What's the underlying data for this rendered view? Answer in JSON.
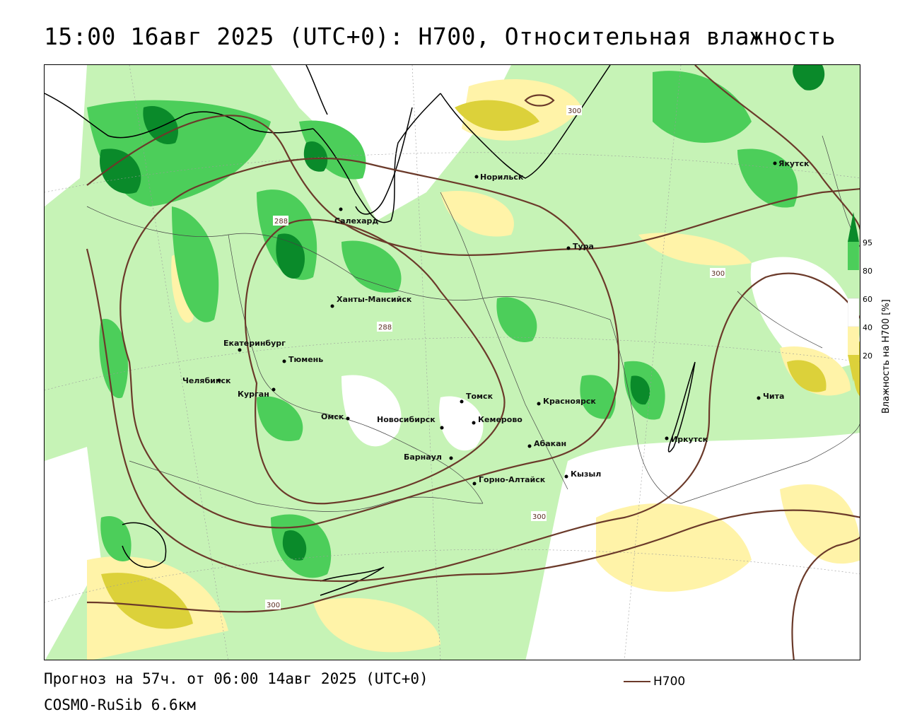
{
  "title": "15:00 16авг 2025 (UTC+0): H700, Относительная влажность",
  "footer": {
    "forecast": "Прогноз на 57ч. от 06:00 14авг 2025 (UTC+0)",
    "model": "COSMO-RuSib 6.6км"
  },
  "legend": {
    "title": "Влажность на H700 [%]",
    "ticks": [
      "95",
      "80",
      "60",
      "40",
      "20"
    ],
    "series_label": "H700",
    "colors": {
      "very_humid": "#0a8a2a",
      "humid": "#4cce5a",
      "moist": "#c6f3b6",
      "neutral": "#ffffff",
      "dry": "#fff3a8",
      "very_dry": "#dcd13a",
      "contour": "#6b3a2a"
    }
  },
  "contour_labels": [
    "300",
    "288",
    "288",
    "300",
    "300",
    "300"
  ],
  "cities": [
    {
      "name": "Норильск"
    },
    {
      "name": "Якутск"
    },
    {
      "name": "Салехард"
    },
    {
      "name": "Тура"
    },
    {
      "name": "Ханты-Мансийск"
    },
    {
      "name": "Екатеринбург"
    },
    {
      "name": "Тюмень"
    },
    {
      "name": "Челябинск"
    },
    {
      "name": "Курган"
    },
    {
      "name": "Омск"
    },
    {
      "name": "Томск"
    },
    {
      "name": "Красноярск"
    },
    {
      "name": "Новосибирск"
    },
    {
      "name": "Кемерово"
    },
    {
      "name": "Абакан"
    },
    {
      "name": "Барнаул"
    },
    {
      "name": "Кызыл"
    },
    {
      "name": "Горно-Алтайск"
    },
    {
      "name": "Иркутск"
    },
    {
      "name": "Чита"
    }
  ]
}
